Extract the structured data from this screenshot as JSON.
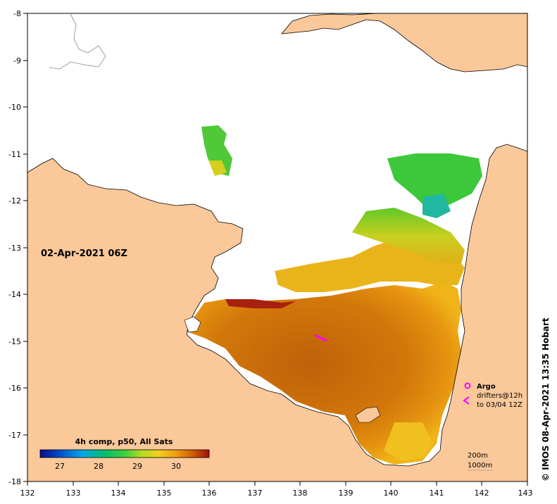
{
  "map": {
    "date_label": "02-Apr-2021 06Z",
    "credit": "© IMOS 08-Apr-2021 13:35 Hobart",
    "x_ticks": [
      "132",
      "133",
      "134",
      "135",
      "136",
      "137",
      "138",
      "139",
      "140",
      "141",
      "142",
      "143"
    ],
    "y_ticks": [
      "-8",
      "-9",
      "-10",
      "-11",
      "-12",
      "-13",
      "-14",
      "-15",
      "-16",
      "-17",
      "-18"
    ],
    "land_color": "#fbc89a",
    "coastline_color": "#000000",
    "no_data_color": "#ffffff"
  },
  "colorbar": {
    "title": "4h comp, p50, All Sats",
    "ticks": [
      "27",
      "28",
      "29",
      "30"
    ],
    "colors": [
      "#0a0a8a",
      "#0050d0",
      "#00a8e8",
      "#00c070",
      "#3ad03a",
      "#b4dc20",
      "#f0d020",
      "#f0a010",
      "#d06000",
      "#a01010"
    ]
  },
  "legend": {
    "argo_label": "Argo",
    "drifters_label": "drifters@12h",
    "drifters_date": "to 03/04 12Z",
    "isobath_200": "200m",
    "isobath_1000": "1000m",
    "argo_color": "#ff00ff",
    "drifter_color": "#ff00ff"
  }
}
